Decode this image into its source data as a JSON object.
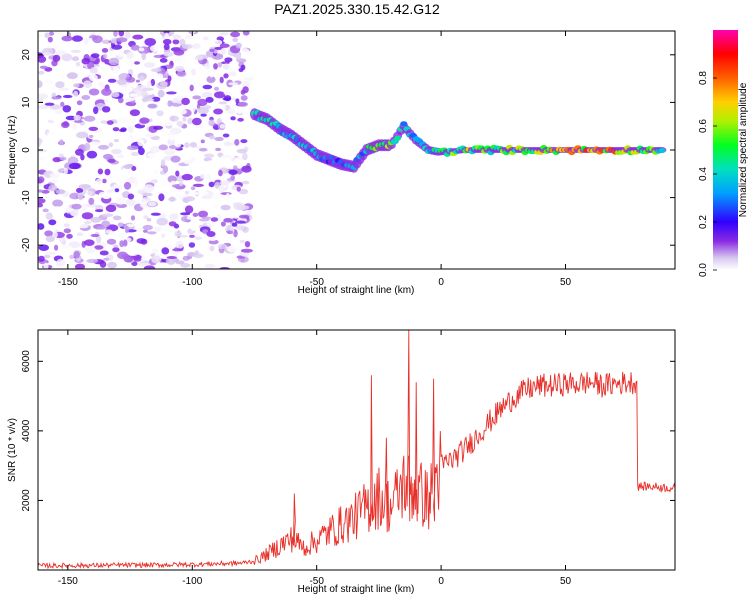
{
  "figure_title": "PAZ1.2025.330.15.42.G12",
  "chart_data": [
    {
      "type": "heatmap",
      "title": "PAZ1.2025.330.15.42.G12",
      "xlabel": "Height of straight line (km)",
      "ylabel": "Frequency (Hz)",
      "xlim": [
        -162,
        94
      ],
      "ylim": [
        -25,
        25
      ],
      "xticks": [
        -150,
        -100,
        -50,
        0,
        50
      ],
      "yticks": [
        -20,
        -10,
        0,
        10,
        20
      ],
      "colorbar": {
        "label": "Normalized spectral amplitude",
        "range": [
          0,
          1
        ],
        "ticks": [
          0.0,
          0.2,
          0.4,
          0.6,
          0.8
        ],
        "tick_labels": [
          "0.0",
          "0.2",
          "0.4",
          "0.6",
          "0.8"
        ],
        "colormap": [
          "#d8c8f0",
          "#6a00d8",
          "#0000ff",
          "#00c8ff",
          "#00ff40",
          "#f0f000",
          "#ff7000",
          "#ff0000",
          "#ff00a0"
        ]
      },
      "noise_region_x": [
        -162,
        -77
      ],
      "ridge": [
        {
          "x": -75,
          "f": 7.5,
          "a": 0.45
        },
        {
          "x": -70,
          "f": 6.5,
          "a": 0.4
        },
        {
          "x": -65,
          "f": 4.5,
          "a": 0.4
        },
        {
          "x": -60,
          "f": 3.0,
          "a": 0.35
        },
        {
          "x": -55,
          "f": 1.0,
          "a": 0.35
        },
        {
          "x": -50,
          "f": -1.0,
          "a": 0.35
        },
        {
          "x": -45,
          "f": -2.0,
          "a": 0.3
        },
        {
          "x": -40,
          "f": -3.0,
          "a": 0.3
        },
        {
          "x": -35,
          "f": -3.5,
          "a": 0.3
        },
        {
          "x": -30,
          "f": 0.0,
          "a": 0.35
        },
        {
          "x": -25,
          "f": 1.0,
          "a": 0.7
        },
        {
          "x": -20,
          "f": 1.0,
          "a": 0.6
        },
        {
          "x": -15,
          "f": 5.0,
          "a": 0.35
        },
        {
          "x": -10,
          "f": 2.0,
          "a": 0.35
        },
        {
          "x": -5,
          "f": 0.0,
          "a": 0.4
        },
        {
          "x": 0,
          "f": -0.5,
          "a": 0.5
        },
        {
          "x": 10,
          "f": 0.0,
          "a": 0.6
        },
        {
          "x": 20,
          "f": 0.0,
          "a": 0.55
        },
        {
          "x": 30,
          "f": 0.0,
          "a": 0.55
        },
        {
          "x": 40,
          "f": 0.0,
          "a": 0.6
        },
        {
          "x": 50,
          "f": 0.0,
          "a": 0.7
        },
        {
          "x": 60,
          "f": 0.0,
          "a": 0.75
        },
        {
          "x": 70,
          "f": 0.0,
          "a": 0.7
        },
        {
          "x": 80,
          "f": 0.0,
          "a": 0.55
        },
        {
          "x": 90,
          "f": 0.0,
          "a": 0.5
        }
      ]
    },
    {
      "type": "line",
      "title": "",
      "xlabel": "Height of straight line (km)",
      "ylabel": "SNR (10 * v/v)",
      "xlim": [
        -162,
        94
      ],
      "ylim": [
        0,
        6900
      ],
      "xticks": [
        -150,
        -100,
        -50,
        0,
        50
      ],
      "yticks": [
        2000,
        4000,
        6000
      ],
      "color": "#e8302a",
      "series": [
        {
          "name": "SNR",
          "x": [
            -162,
            -150,
            -140,
            -130,
            -120,
            -110,
            -100,
            -90,
            -80,
            -75,
            -70,
            -65,
            -60,
            -55,
            -50,
            -45,
            -40,
            -35,
            -30,
            -25,
            -20,
            -15,
            -10,
            -5,
            0,
            5,
            10,
            15,
            20,
            25,
            30,
            35,
            40,
            45,
            50,
            55,
            60,
            65,
            70,
            75,
            78,
            79,
            85,
            94
          ],
          "y": [
            120,
            130,
            130,
            140,
            140,
            150,
            160,
            180,
            200,
            260,
            450,
            700,
            900,
            650,
            850,
            1100,
            1300,
            1500,
            1800,
            2100,
            1800,
            2500,
            2300,
            2000,
            3000,
            3200,
            3500,
            3900,
            4300,
            4700,
            5000,
            5200,
            5300,
            5300,
            5350,
            5350,
            5400,
            5300,
            5350,
            5400,
            5400,
            2400,
            2400,
            2350
          ]
        }
      ],
      "spikes": [
        {
          "x": -59,
          "y": 2200
        },
        {
          "x": -28,
          "y": 5600
        },
        {
          "x": -22,
          "y": 3800
        },
        {
          "x": -13,
          "y": 6900
        },
        {
          "x": -10,
          "y": 5400
        },
        {
          "x": -3,
          "y": 5500
        }
      ]
    }
  ]
}
